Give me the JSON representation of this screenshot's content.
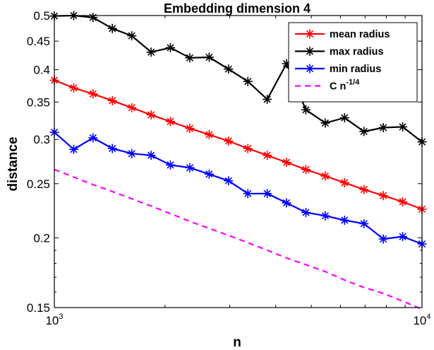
{
  "chart_data": {
    "type": "line",
    "title": "Embedding dimension 4",
    "xlabel": "n",
    "ylabel": "distance",
    "xscale": "log",
    "yscale": "log",
    "xlim": [
      1000,
      10000
    ],
    "ylim": [
      0.15,
      0.5
    ],
    "grid": false,
    "legend_position": "top-right",
    "x_ticks": [
      {
        "value": 1000,
        "base": "10",
        "exp": "3"
      },
      {
        "value": 10000,
        "base": "10",
        "exp": "4"
      }
    ],
    "y_ticks": [
      {
        "value": 0.15,
        "label": "0.15"
      },
      {
        "value": 0.2,
        "label": "0.2"
      },
      {
        "value": 0.25,
        "label": "0.25"
      },
      {
        "value": 0.3,
        "label": "0.3"
      },
      {
        "value": 0.35,
        "label": "0.35"
      },
      {
        "value": 0.4,
        "label": "0.4"
      },
      {
        "value": 0.45,
        "label": "0.45"
      },
      {
        "value": 0.5,
        "label": "0.5"
      }
    ],
    "x": [
      1000,
      1129,
      1274,
      1438,
      1624,
      1833,
      2069,
      2336,
      2637,
      2976,
      3360,
      3793,
      4281,
      4833,
      5456,
      6158,
      6952,
      7848,
      8859,
      10000
    ],
    "series": [
      {
        "name": "mean radius",
        "color": "#ff0000",
        "marker": "asterisk",
        "line_style": "solid",
        "values": [
          0.383,
          0.371,
          0.362,
          0.352,
          0.342,
          0.332,
          0.323,
          0.314,
          0.306,
          0.298,
          0.289,
          0.281,
          0.273,
          0.265,
          0.258,
          0.251,
          0.244,
          0.238,
          0.232,
          0.225
        ]
      },
      {
        "name": "max radius",
        "color": "#000000",
        "marker": "asterisk",
        "line_style": "solid",
        "values": [
          0.499,
          0.5,
          0.496,
          0.474,
          0.46,
          0.43,
          0.438,
          0.42,
          0.421,
          0.401,
          0.381,
          0.354,
          0.41,
          0.339,
          0.321,
          0.328,
          0.31,
          0.315,
          0.316,
          0.297
        ]
      },
      {
        "name": "min radius",
        "color": "#0000ff",
        "marker": "asterisk",
        "line_style": "solid",
        "values": [
          0.309,
          0.288,
          0.302,
          0.289,
          0.283,
          0.281,
          0.27,
          0.267,
          0.26,
          0.253,
          0.24,
          0.24,
          0.231,
          0.222,
          0.219,
          0.215,
          0.212,
          0.199,
          0.201,
          0.195
        ]
      },
      {
        "name_base": "C n",
        "name_exp": "-1/4",
        "color": "#ff00ff",
        "marker": "none",
        "line_style": "dashed",
        "values": [
          0.265,
          0.257,
          0.249,
          0.242,
          0.235,
          0.228,
          0.221,
          0.214,
          0.208,
          0.202,
          0.196,
          0.19,
          0.184,
          0.179,
          0.174,
          0.168,
          0.163,
          0.159,
          0.154,
          0.149
        ]
      }
    ]
  }
}
